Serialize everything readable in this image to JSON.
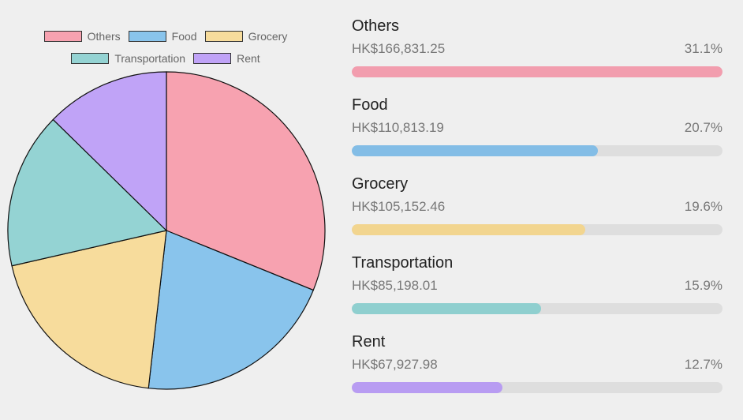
{
  "chart_data": {
    "type": "pie",
    "series": [
      {
        "name": "Others",
        "value": 166831.25,
        "color": "#f7a2b0"
      },
      {
        "name": "Food",
        "value": 110813.19,
        "color": "#89c4ec"
      },
      {
        "name": "Grocery",
        "value": 105152.46,
        "color": "#f7dc9c"
      },
      {
        "name": "Transportation",
        "value": 85198.01,
        "color": "#94d3d3"
      },
      {
        "name": "Rent",
        "value": 67927.98,
        "color": "#c0a3f7"
      }
    ],
    "legend_placement": "top"
  },
  "breakdown": [
    {
      "name": "Others",
      "amount": "HK$166,831.25",
      "percent": "31.1%",
      "fill_fraction": 1.0,
      "bar_color": "#f29dae"
    },
    {
      "name": "Food",
      "amount": "HK$110,813.19",
      "percent": "20.7%",
      "fill_fraction": 0.664,
      "bar_color": "#83bde6"
    },
    {
      "name": "Grocery",
      "amount": "HK$105,152.46",
      "percent": "19.6%",
      "fill_fraction": 0.63,
      "bar_color": "#f2d58f"
    },
    {
      "name": "Transportation",
      "amount": "HK$85,198.01",
      "percent": "15.9%",
      "fill_fraction": 0.511,
      "bar_color": "#8fcfcf"
    },
    {
      "name": "Rent",
      "amount": "HK$67,927.98",
      "percent": "12.7%",
      "fill_fraction": 0.407,
      "bar_color": "#b89cf2"
    }
  ]
}
